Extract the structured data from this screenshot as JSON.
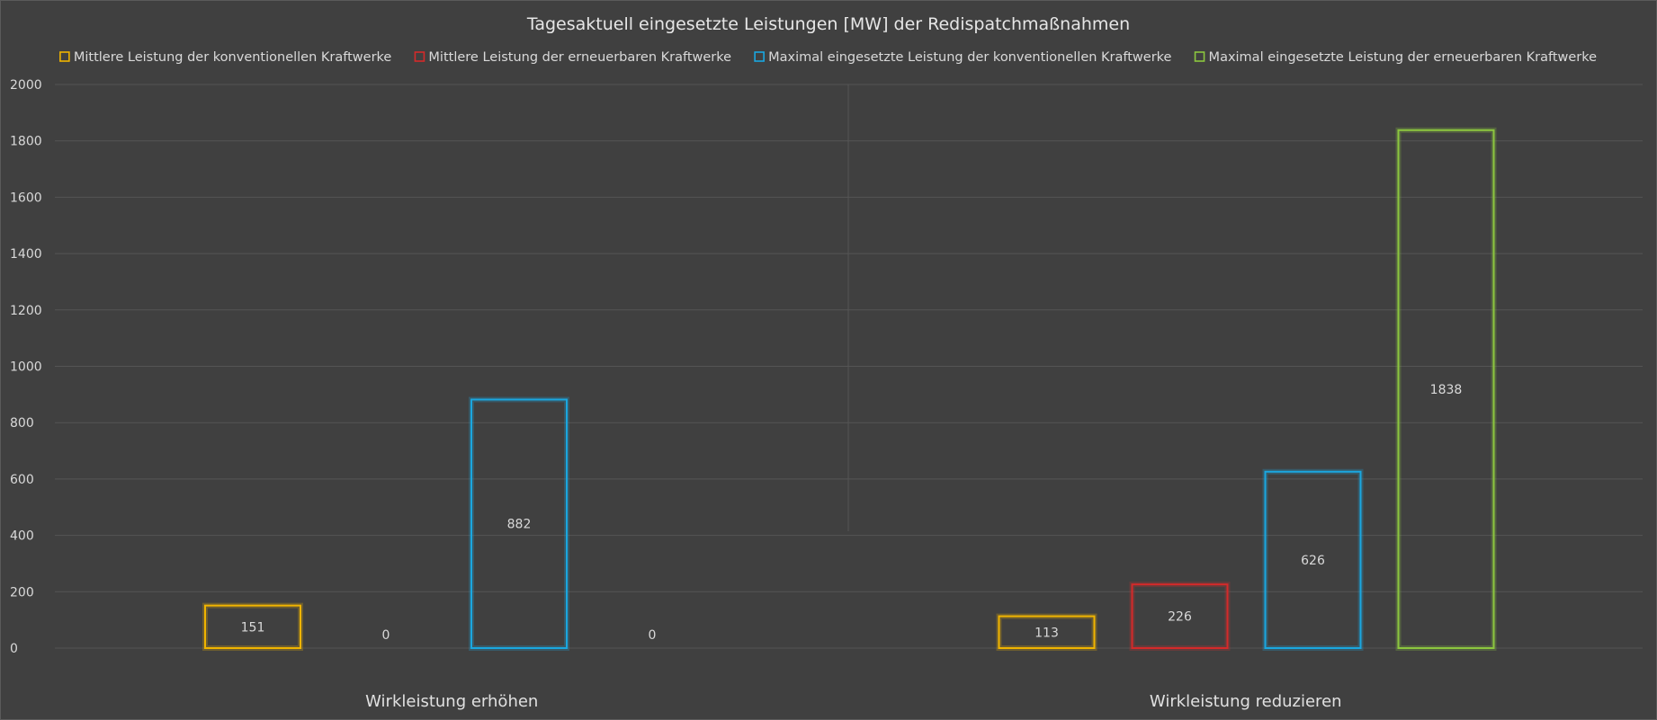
{
  "chart_data": {
    "type": "bar",
    "title": "Tagesaktuell eingesetzte Leistungen [MW] der Redispatchmaßnahmen",
    "categories": [
      "Wirkleistung erhöhen",
      "Wirkleistung reduzieren"
    ],
    "series": [
      {
        "name": "Mittlere Leistung der konventionellen Kraftwerke",
        "color": "#f0b400",
        "values": [
          151,
          113
        ]
      },
      {
        "name": "Mittlere Leistung der erneuerbaren Kraftwerke",
        "color": "#d42a2a",
        "values": [
          0,
          226
        ]
      },
      {
        "name": "Maximal eingesetzte Leistung der konventionellen Kraftwerke",
        "color": "#1aa7e0",
        "values": [
          882,
          626
        ]
      },
      {
        "name": "Maximal eingesetzte Leistung der erneuerbaren Kraftwerke",
        "color": "#8cc63f",
        "values": [
          0,
          1838
        ]
      }
    ],
    "yticks": [
      "0",
      "200",
      "400",
      "600",
      "800",
      "1000",
      "1200",
      "1400",
      "1600",
      "1800",
      "2000"
    ],
    "ylim": [
      0,
      2000
    ],
    "xlabel": "",
    "ylabel": "",
    "grid": true,
    "legend_position": "top"
  }
}
